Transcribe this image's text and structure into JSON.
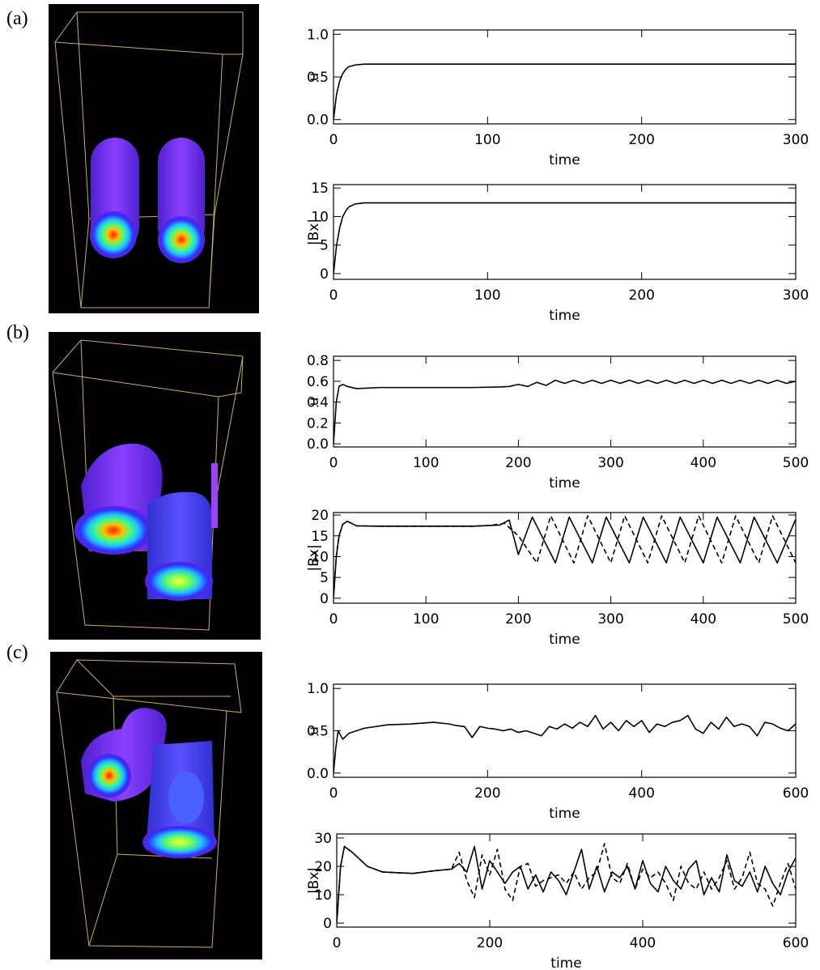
{
  "panel_labels": [
    "(a)",
    "(b)",
    "(c)"
  ],
  "chart_data": [
    {
      "type": "line",
      "ylabel": "u",
      "xlabel": "time",
      "xlim": [
        0,
        300
      ],
      "ylim": [
        -0.05,
        1.05
      ],
      "xticks": [
        0,
        100,
        200,
        300
      ],
      "yticks": [
        {
          "value": 0,
          "label": "0.0"
        },
        0.5,
        {
          "value": 1,
          "label": "1.0"
        }
      ],
      "x": [
        0,
        2,
        4,
        6,
        8,
        10,
        14,
        20,
        30,
        300
      ],
      "series": [
        {
          "color": "#000000",
          "line_style": "solid",
          "values": [
            0,
            0.3,
            0.45,
            0.54,
            0.59,
            0.62,
            0.64,
            0.65,
            0.65,
            0.65
          ]
        }
      ]
    },
    {
      "type": "line",
      "ylabel": "|Bx|",
      "xlabel": "time",
      "xlim": [
        0,
        300
      ],
      "ylim": [
        -1,
        15.6
      ],
      "xticks": [
        0,
        100,
        200,
        300
      ],
      "yticks": [
        0,
        5,
        10,
        15
      ],
      "x": [
        0,
        2,
        4,
        6,
        8,
        10,
        14,
        20,
        30,
        300
      ],
      "series": [
        {
          "color": "#000000",
          "line_style": "solid",
          "values": [
            0,
            5,
            8,
            10,
            11,
            11.7,
            12.2,
            12.4,
            12.4,
            12.4
          ]
        }
      ]
    },
    {
      "type": "line",
      "ylabel": "u",
      "xlabel": "time",
      "xlim": [
        0,
        500
      ],
      "ylim": [
        -0.03,
        0.84
      ],
      "xticks": [
        0,
        100,
        200,
        300,
        400,
        500
      ],
      "yticks": [
        {
          "value": 0,
          "label": "0.0"
        },
        0.2,
        0.4,
        0.6,
        0.8
      ],
      "x": [
        0,
        3,
        6,
        10,
        15,
        25,
        50,
        100,
        150,
        180,
        190,
        200,
        210,
        220,
        230,
        240,
        250,
        260,
        270,
        280,
        290,
        300,
        310,
        320,
        330,
        340,
        350,
        360,
        370,
        380,
        390,
        400,
        410,
        420,
        430,
        440,
        450,
        460,
        470,
        480,
        490,
        500
      ],
      "series": [
        {
          "color": "#000000",
          "line_style": "solid",
          "values": [
            0,
            0.4,
            0.55,
            0.57,
            0.55,
            0.53,
            0.54,
            0.54,
            0.54,
            0.545,
            0.55,
            0.57,
            0.55,
            0.59,
            0.56,
            0.61,
            0.58,
            0.61,
            0.58,
            0.61,
            0.58,
            0.61,
            0.58,
            0.61,
            0.58,
            0.61,
            0.58,
            0.61,
            0.58,
            0.61,
            0.58,
            0.61,
            0.58,
            0.61,
            0.58,
            0.61,
            0.58,
            0.61,
            0.58,
            0.61,
            0.58,
            0.6
          ]
        }
      ]
    },
    {
      "type": "line",
      "ylabel": "|Bx|",
      "xlabel": "time",
      "xlim": [
        0,
        500
      ],
      "ylim": [
        -1.2,
        20.6
      ],
      "xticks": [
        0,
        100,
        200,
        300,
        400,
        500
      ],
      "yticks": [
        0,
        5,
        10,
        15,
        20
      ],
      "series": [
        {
          "color": "#000000",
          "line_style": "solid",
          "x": [
            0,
            3,
            6,
            10,
            15,
            25,
            50,
            100,
            150,
            170,
            180,
            190,
            200,
            215,
            240,
            255,
            280,
            295,
            320,
            335,
            360,
            375,
            400,
            415,
            440,
            455,
            480,
            500
          ],
          "values": [
            0,
            10,
            15,
            17.8,
            18.5,
            17.4,
            17.3,
            17.3,
            17.3,
            17.5,
            17.6,
            18.8,
            10.5,
            19.5,
            8.5,
            19.5,
            8.5,
            19.5,
            8.5,
            19.5,
            8.5,
            19.5,
            8.5,
            19.5,
            8.5,
            19.5,
            8.5,
            19
          ]
        },
        {
          "color": "#000000",
          "line_style": "dashed",
          "x": [
            0,
            3,
            6,
            10,
            15,
            25,
            50,
            100,
            150,
            170,
            185,
            200,
            220,
            235,
            260,
            275,
            300,
            315,
            340,
            355,
            380,
            395,
            420,
            435,
            460,
            475,
            500
          ],
          "values": [
            0,
            10,
            15,
            17.8,
            18.5,
            17.4,
            17.3,
            17.3,
            17.3,
            17.5,
            18,
            15,
            8.5,
            19.8,
            8.5,
            19.8,
            8.5,
            19.8,
            8.5,
            19.8,
            8.5,
            19.8,
            8.5,
            19.8,
            8.5,
            19.8,
            8.5
          ]
        }
      ]
    },
    {
      "type": "line",
      "ylabel": "u",
      "xlabel": "time",
      "xlim": [
        0,
        600
      ],
      "ylim": [
        -0.05,
        1.05
      ],
      "xticks": [
        0,
        200,
        400,
        600
      ],
      "yticks": [
        {
          "value": 0,
          "label": "0.0"
        },
        0.5,
        {
          "value": 1,
          "label": "1.0"
        }
      ],
      "x": [
        0,
        3,
        6,
        12,
        20,
        40,
        70,
        100,
        130,
        150,
        160,
        170,
        180,
        190,
        200,
        210,
        220,
        230,
        240,
        250,
        260,
        270,
        280,
        290,
        300,
        310,
        320,
        330,
        340,
        350,
        360,
        370,
        380,
        390,
        400,
        410,
        420,
        430,
        440,
        450,
        460,
        470,
        480,
        490,
        500,
        510,
        520,
        530,
        540,
        550,
        560,
        570,
        580,
        590,
        600
      ],
      "series": [
        {
          "color": "#000000",
          "line_style": "solid",
          "values": [
            0,
            0.3,
            0.5,
            0.4,
            0.47,
            0.53,
            0.57,
            0.58,
            0.6,
            0.58,
            0.56,
            0.55,
            0.42,
            0.55,
            0.53,
            0.52,
            0.5,
            0.52,
            0.48,
            0.5,
            0.47,
            0.44,
            0.55,
            0.52,
            0.58,
            0.53,
            0.6,
            0.55,
            0.68,
            0.52,
            0.6,
            0.5,
            0.62,
            0.55,
            0.62,
            0.48,
            0.58,
            0.55,
            0.6,
            0.62,
            0.68,
            0.52,
            0.47,
            0.6,
            0.52,
            0.66,
            0.55,
            0.58,
            0.55,
            0.44,
            0.6,
            0.58,
            0.53,
            0.5,
            0.58
          ]
        }
      ]
    },
    {
      "type": "line",
      "ylabel": "|Bx|",
      "xlabel": "time",
      "xlim": [
        0,
        600
      ],
      "ylim": [
        -1.4,
        31.4
      ],
      "xticks": [
        0,
        200,
        400,
        600
      ],
      "yticks": [
        0,
        10,
        20,
        30
      ],
      "x": [
        0,
        5,
        10,
        20,
        40,
        60,
        100,
        130,
        150,
        160,
        170,
        180,
        190,
        200,
        210,
        220,
        230,
        240,
        250,
        260,
        270,
        280,
        290,
        300,
        310,
        320,
        330,
        340,
        350,
        360,
        370,
        380,
        390,
        400,
        410,
        420,
        430,
        440,
        450,
        460,
        470,
        480,
        490,
        500,
        510,
        520,
        530,
        540,
        550,
        560,
        570,
        580,
        590,
        600
      ],
      "series": [
        {
          "color": "#000000",
          "line_style": "solid",
          "values": [
            0,
            20,
            27,
            25,
            20,
            18,
            17.5,
            18.5,
            19,
            21,
            18,
            27,
            12,
            22,
            18,
            14,
            18,
            20,
            12,
            17,
            11,
            18,
            15,
            10,
            18,
            26,
            12,
            20,
            11,
            18,
            16,
            20,
            12,
            22,
            14,
            11,
            20,
            15,
            12,
            19,
            22,
            10,
            16,
            11,
            24,
            15,
            13,
            18,
            11,
            20,
            14,
            10,
            18,
            23
          ]
        },
        {
          "color": "#000000",
          "line_style": "dashed",
          "values": [
            0,
            20,
            27,
            25,
            20,
            18,
            17.5,
            18.5,
            19,
            25,
            15,
            9,
            24,
            17,
            26,
            12,
            8,
            20,
            21,
            13,
            15,
            16,
            17,
            14,
            18,
            12,
            16,
            18,
            28,
            16,
            14,
            21,
            12,
            19,
            16,
            18,
            14,
            8,
            20,
            14,
            12,
            18,
            12,
            16,
            22,
            12,
            16,
            25,
            14,
            12,
            6,
            14,
            21,
            12
          ]
        }
      ]
    }
  ]
}
